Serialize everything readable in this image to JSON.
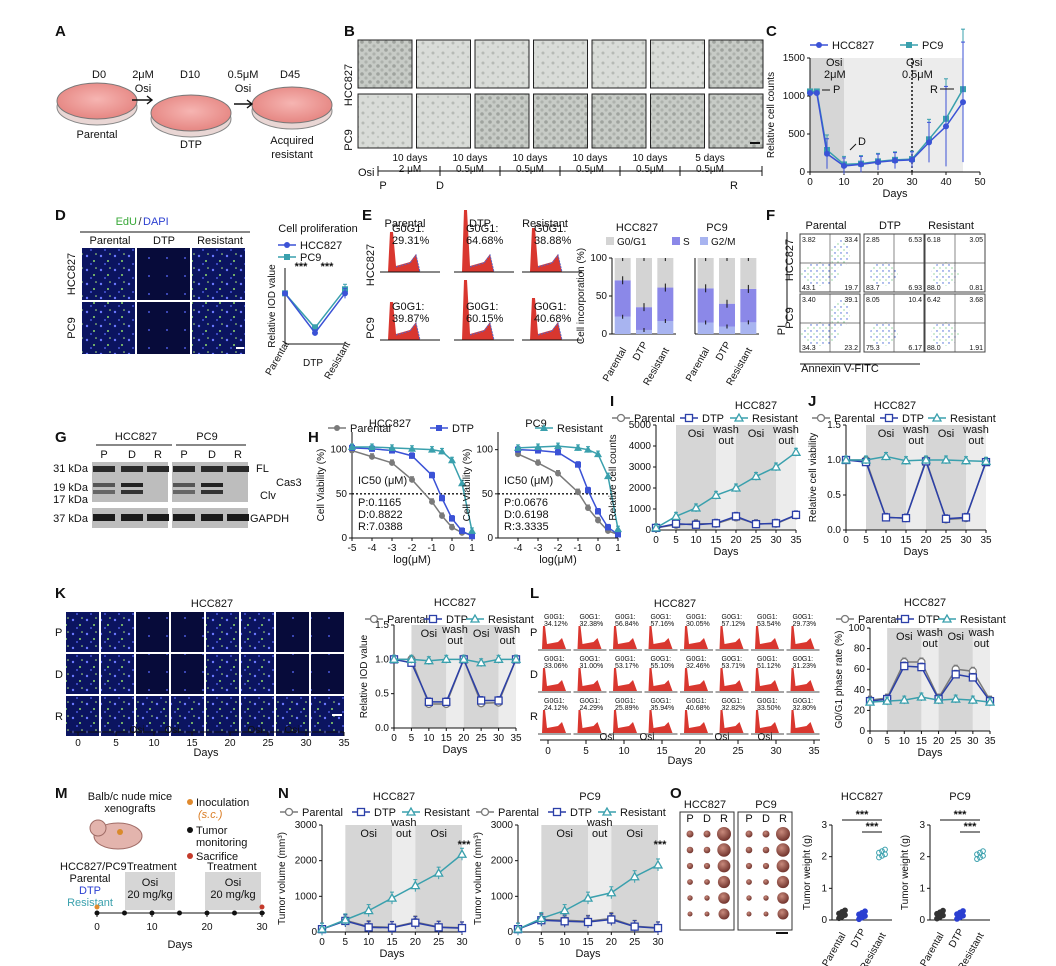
{
  "panel_labels": {
    "A": "A",
    "B": "B",
    "C": "C",
    "D": "D",
    "E": "E",
    "F": "F",
    "G": "G",
    "H": "H",
    "I": "I",
    "J": "J",
    "K": "K",
    "L": "L",
    "M": "M",
    "N": "N",
    "O": "O"
  },
  "colors": {
    "blue": "#3b52d6",
    "teal": "#3aa0ad",
    "gray": "#7a7a7a",
    "navy": "#2b3fa8",
    "red": "#d9372f",
    "purple": "#8b88e8",
    "shade": "#d6d6d6",
    "light": "#ececec"
  },
  "A": {
    "d0": "D0",
    "d10": "D10",
    "d45": "D45",
    "dose1": "2μM",
    "osi1": "Osi",
    "dose2": "0.5μM",
    "osi2": "Osi",
    "parental": "Parental",
    "dtp": "DTP",
    "acquired": "Acquired",
    "resistant": "resistant"
  },
  "B": {
    "row1": "HCC827",
    "row2": "PC9",
    "osi": "Osi",
    "durations": [
      "10 days",
      "10 days",
      "10 days",
      "10 days",
      "10 days",
      "5 days"
    ],
    "doses": [
      "2 μM",
      "0.5μM",
      "0.5μM",
      "0.5μM",
      "0.5μM",
      "0.5μM"
    ],
    "p": "P",
    "d": "D",
    "r": "R"
  },
  "C": {
    "legend1": "HCC827",
    "legend2": "PC9",
    "xlabel": "Days",
    "ylabel": "Relative cell counts",
    "osi_a": "Osi",
    "dose_a": "2μM",
    "osi_b": "Osi",
    "dose_b": "0.5μM",
    "label_p": "P",
    "label_d": "D",
    "label_r": "R",
    "xticks": [
      "0",
      "10",
      "20",
      "30",
      "40",
      "50"
    ],
    "yticks": [
      "0",
      "500",
      "1000",
      "1500"
    ]
  },
  "D": {
    "title_edu": "EdU",
    "slash": "/",
    "title_dapi": "DAPI",
    "cols": [
      "Parental",
      "DTP",
      "Resistant"
    ],
    "rows": [
      "HCC827",
      "PC9"
    ],
    "chart_title": "Cell proliferation",
    "legend1": "HCC827",
    "legend2": "PC9",
    "ylabel": "Relative IOD value",
    "xcats": [
      "Parental",
      "DTP",
      "Resistant"
    ],
    "sig1": "***",
    "sig2": "***"
  },
  "E": {
    "cols": [
      "Parental",
      "DTP",
      "Resistant"
    ],
    "rows": [
      "HCC827",
      "PC9"
    ],
    "g1": [
      "G0G1:",
      "29.31%",
      "G0G1:",
      "64.68%",
      "G0G1:",
      "38.88%"
    ],
    "g2": [
      "G0G1:",
      "39.87%",
      "G0G1:",
      "60.15%",
      "G0G1:",
      "40.68%"
    ],
    "bar_title1": "HCC827",
    "bar_title2": "PC9",
    "legend": [
      "G0/G1",
      "S",
      "G2/M"
    ],
    "ylabel": "Cell incorporation (%)",
    "yticks": [
      "0",
      "50",
      "100"
    ],
    "xcats": [
      "Parental",
      "DTP",
      "Resistant"
    ]
  },
  "F": {
    "cols": [
      "Parental",
      "DTP",
      "Resistant"
    ],
    "rows": [
      "HCC827",
      "PC9"
    ],
    "xlabel": "Annexin V-FITC",
    "ylabel": "PI",
    "q1": [
      [
        "3.82",
        "33.4",
        "43.1",
        "19.7"
      ],
      [
        "2.85",
        "6.53",
        "83.7",
        "6.93"
      ],
      [
        "6.18",
        "3.05",
        "88.0",
        "0.81"
      ]
    ],
    "q2": [
      [
        "3.40",
        "39.1",
        "34.3",
        "23.2"
      ],
      [
        "8.05",
        "10.4",
        "75.3",
        "6.17"
      ],
      [
        "6.42",
        "3.68",
        "88.0",
        "1.91"
      ]
    ]
  },
  "G": {
    "g1": "HCC827",
    "g2": "PC9",
    "lanes": [
      "P",
      "D",
      "R",
      "P",
      "D",
      "R"
    ],
    "kda": [
      "31 kDa",
      "19 kDa",
      "17 kDa",
      "37 kDa"
    ],
    "fl": "FL",
    "cas3": "Cas3",
    "clv": "Clv",
    "gapdh": "GAPDH"
  },
  "H": {
    "title1": "HCC827",
    "title2": "PC9",
    "legend": [
      "Parental",
      "DTP",
      "Resistant"
    ],
    "ylabel": "Cell Viability (%)",
    "xlabel": "log(μM)",
    "ic50": "IC50 (μM)",
    "ic1": [
      "P:0.1165",
      "D:0.8822",
      "R:7.0388"
    ],
    "ic2": [
      "P:0.0676",
      "D:0.6198",
      "R:3.3335"
    ],
    "xticks1": [
      "-5",
      "-4",
      "-3",
      "-2",
      "-1",
      "0",
      "1"
    ],
    "xticks2": [
      "-4",
      "-3",
      "-2",
      "-1",
      "0",
      "1"
    ],
    "yticks": [
      "0",
      "50",
      "100"
    ]
  },
  "I": {
    "title": "HCC827",
    "legend": [
      "Parental",
      "DTP",
      "Resistant"
    ],
    "ylabel": "Relative cell counts",
    "xlabel": "Days",
    "osi": "Osi",
    "wash": "wash",
    "out": "out",
    "yticks": [
      "0",
      "1000",
      "2000",
      "3000",
      "4000",
      "5000"
    ],
    "xticks": [
      "0",
      "5",
      "10",
      "15",
      "20",
      "25",
      "30",
      "35"
    ]
  },
  "J": {
    "title": "HCC827",
    "legend": [
      "Parental",
      "DTP",
      "Resistant"
    ],
    "ylabel": "Relative cell viability",
    "xlabel": "Days",
    "osi": "Osi",
    "wash": "wash",
    "out": "out",
    "yticks": [
      "0.0",
      "0.5",
      "1.0",
      "1.5"
    ],
    "xticks": [
      "0",
      "5",
      "10",
      "15",
      "20",
      "25",
      "30",
      "35"
    ]
  },
  "K": {
    "title": "HCC827",
    "rows": [
      "P",
      "D",
      "R"
    ],
    "xlabel": "Days",
    "osi": "Osi",
    "xticks": [
      "0",
      "5",
      "10",
      "15",
      "20",
      "25",
      "30",
      "35"
    ],
    "chart_title": "HCC827",
    "legend": [
      "Parental",
      "DTP",
      "Resistant"
    ],
    "ylabel": "Relative IOD value",
    "wash": "wash",
    "out": "out",
    "yticks": [
      "0.0",
      "0.5",
      "1.0",
      "1.5"
    ]
  },
  "L": {
    "title": "HCC827",
    "rows": [
      "P",
      "D",
      "R"
    ],
    "xlabel": "Days",
    "osi": "Osi",
    "xticks": [
      "0",
      "5",
      "10",
      "15",
      "20",
      "25",
      "30",
      "35"
    ],
    "g0": "G0G1:",
    "r1": [
      "34.12%",
      "32.38%",
      "56.84%",
      "57.16%",
      "30.05%",
      "57.12%",
      "53.54%",
      "29.73%"
    ],
    "r2": [
      "33.06%",
      "31.00%",
      "53.17%",
      "55.10%",
      "32.46%",
      "53.71%",
      "51.12%",
      "31.23%"
    ],
    "r3": [
      "24.12%",
      "24.29%",
      "25.89%",
      "35.94%",
      "40.68%",
      "32.82%",
      "33.50%",
      "32.80%"
    ],
    "chart_title": "HCC827",
    "legend": [
      "Parental",
      "DTP",
      "Resistant"
    ],
    "ylabel": "G0/G1 phase rate (%)",
    "wash": "wash",
    "out": "out",
    "yticks": [
      "0",
      "20",
      "40",
      "60",
      "80",
      "100"
    ]
  },
  "M": {
    "mice": "Balb/c nude mice",
    "xeno": "xenografts",
    "inoc": "Inoculation",
    "sc": "(s.c.)",
    "tumor": "Tumor",
    "monitor": "monitoring",
    "sacrifice": "Sacrifice",
    "cells": "HCC827/PC9",
    "treatment1": "Treatment",
    "treatment2": "Treatment",
    "parental": "Parental",
    "dtp": "DTP",
    "resistant": "Resistant",
    "osi": "Osi",
    "dose": "20 mg/kg",
    "xlabel": "Days",
    "xticks": [
      "0",
      "10",
      "20",
      "30"
    ]
  },
  "N": {
    "title1": "HCC827",
    "title2": "PC9",
    "legend": [
      "Parental",
      "DTP",
      "Resistant"
    ],
    "ylabel": "Tumor volume (mm³)",
    "xlabel": "Days",
    "osi": "Osi",
    "wash": "wash",
    "out": "out",
    "sig": "***",
    "yticks": [
      "0",
      "1000",
      "2000",
      "3000"
    ],
    "xticks": [
      "0",
      "5",
      "10",
      "15",
      "20",
      "25",
      "30"
    ]
  },
  "O": {
    "g1": "HCC827",
    "g2": "PC9",
    "lanes": [
      "P",
      "D",
      "R",
      "P",
      "D",
      "R"
    ],
    "t1": "HCC827",
    "t2": "PC9",
    "ylabel": "Tumor weight (g)",
    "xcats": [
      "Parental",
      "DTP",
      "Resistant"
    ],
    "sig": "***",
    "yticks": [
      "0",
      "1",
      "2",
      "3"
    ]
  },
  "chart_data": [
    {
      "type": "line",
      "panel": "C",
      "x": [
        0,
        2,
        5,
        10,
        15,
        20,
        25,
        30,
        35,
        40,
        45
      ],
      "series": [
        {
          "name": "HCC827",
          "values": [
            1040,
            1040,
            240,
            80,
            100,
            130,
            150,
            160,
            390,
            600,
            920
          ]
        },
        {
          "name": "PC9",
          "values": [
            1060,
            1060,
            290,
            100,
            110,
            140,
            160,
            170,
            430,
            700,
            1090
          ]
        }
      ],
      "xlabel": "Days",
      "ylabel": "Relative cell counts",
      "xlim": [
        0,
        50
      ],
      "ylim": [
        0,
        1500
      ]
    },
    {
      "type": "line",
      "panel": "D",
      "categories": [
        "Parental",
        "DTP",
        "Resistant"
      ],
      "series": [
        {
          "name": "HCC827",
          "values": [
            1.0,
            0.22,
            1.0
          ]
        },
        {
          "name": "PC9",
          "values": [
            1.0,
            0.32,
            1.08
          ]
        }
      ],
      "ylabel": "Relative IOD value"
    },
    {
      "type": "bar",
      "panel": "E",
      "categories": [
        "Parental",
        "DTP",
        "Resistant"
      ],
      "series": [
        {
          "name": "G0/G1",
          "hcc827": [
            29.31,
            64.68,
            38.88
          ],
          "pc9": [
            39.87,
            60.15,
            40.68
          ]
        },
        {
          "name": "S",
          "hcc827": [
            48,
            30,
            44
          ],
          "pc9": [
            45,
            30,
            44
          ]
        },
        {
          "name": "G2/M",
          "hcc827": [
            22.69,
            5.32,
            17.12
          ],
          "pc9": [
            15.13,
            9.85,
            15.32
          ]
        }
      ],
      "ylabel": "Cell incorporation (%)",
      "ylim": [
        0,
        100
      ]
    },
    {
      "type": "line",
      "panel": "H-HCC827",
      "x": [
        -5,
        -4,
        -3,
        -2,
        -1,
        -0.5,
        0,
        0.5,
        1
      ],
      "series": [
        {
          "name": "Parental",
          "values": [
            99,
            92,
            85,
            66,
            41,
            25,
            12,
            6,
            4
          ]
        },
        {
          "name": "DTP",
          "values": [
            102,
            101,
            99,
            93,
            71,
            45,
            22,
            8,
            2
          ]
        },
        {
          "name": "Resistant",
          "values": [
            103,
            103,
            102,
            101,
            100,
            98,
            88,
            62,
            8
          ]
        }
      ],
      "xlabel": "log(μM)",
      "ylabel": "Cell Viability (%)"
    },
    {
      "type": "line",
      "panel": "H-PC9",
      "x": [
        -4,
        -3,
        -2,
        -1,
        -0.5,
        0,
        0.5,
        1
      ],
      "series": [
        {
          "name": "Parental",
          "values": [
            95,
            85,
            73,
            52,
            34,
            20,
            8,
            4
          ]
        },
        {
          "name": "DTP",
          "values": [
            100,
            99,
            97,
            83,
            54,
            30,
            12,
            4
          ]
        },
        {
          "name": "Resistant",
          "values": [
            102,
            103,
            104,
            102,
            100,
            95,
            70,
            10
          ]
        }
      ],
      "xlabel": "log(μM)",
      "ylabel": "Cell Viability (%)"
    },
    {
      "type": "line",
      "panel": "I",
      "x": [
        0,
        5,
        10,
        15,
        20,
        25,
        30,
        35
      ],
      "series": [
        {
          "name": "Parental",
          "values": [
            100,
            250,
            300,
            300,
            600,
            300,
            300,
            700
          ]
        },
        {
          "name": "DTP",
          "values": [
            100,
            300,
            250,
            320,
            650,
            280,
            320,
            720
          ]
        },
        {
          "name": "Resistant",
          "values": [
            100,
            650,
            1050,
            1650,
            2000,
            2550,
            3000,
            3700
          ]
        }
      ],
      "xlabel": "Days",
      "ylabel": "Relative cell counts",
      "ylim": [
        0,
        5000
      ]
    },
    {
      "type": "line",
      "panel": "J",
      "x": [
        0,
        5,
        10,
        15,
        20,
        25,
        30,
        35
      ],
      "series": [
        {
          "name": "Parental",
          "values": [
            1.0,
            1.0,
            0.18,
            0.17,
            1.0,
            0.15,
            0.17,
            0.98
          ]
        },
        {
          "name": "DTP",
          "values": [
            1.0,
            0.97,
            0.18,
            0.17,
            0.98,
            0.16,
            0.18,
            0.97
          ]
        },
        {
          "name": "Resistant",
          "values": [
            1.0,
            1.0,
            1.05,
            0.99,
            1.0,
            1.0,
            0.99,
            0.98
          ]
        }
      ],
      "xlabel": "Days",
      "ylabel": "Relative cell viability",
      "ylim": [
        0,
        1.5
      ]
    },
    {
      "type": "line",
      "panel": "K",
      "x": [
        0,
        5,
        10,
        15,
        20,
        25,
        30,
        35
      ],
      "series": [
        {
          "name": "Parental",
          "values": [
            1.0,
            1.0,
            0.35,
            0.35,
            1.0,
            0.36,
            0.37,
            1.0
          ]
        },
        {
          "name": "DTP",
          "values": [
            1.0,
            0.95,
            0.38,
            0.38,
            1.0,
            0.4,
            0.4,
            1.0
          ]
        },
        {
          "name": "Resistant",
          "values": [
            1.0,
            1.0,
            0.98,
            1.0,
            1.0,
            0.95,
            1.0,
            1.0
          ]
        }
      ],
      "xlabel": "Days",
      "ylabel": "Relative IOD value",
      "ylim": [
        0,
        1.5
      ]
    },
    {
      "type": "line",
      "panel": "L",
      "x": [
        0,
        5,
        10,
        15,
        20,
        25,
        30,
        35
      ],
      "series": [
        {
          "name": "Parental",
          "values": [
            30,
            32,
            67,
            67,
            32,
            60,
            58,
            30
          ]
        },
        {
          "name": "DTP",
          "values": [
            29,
            31,
            63,
            62,
            31,
            55,
            52,
            29
          ]
        },
        {
          "name": "Resistant",
          "values": [
            28,
            29,
            30,
            33,
            30,
            31,
            30,
            28
          ]
        }
      ],
      "xlabel": "Days",
      "ylabel": "G0/G1 phase rate (%)",
      "ylim": [
        0,
        100
      ]
    },
    {
      "type": "line",
      "panel": "N-HCC827",
      "x": [
        0,
        5,
        10,
        15,
        20,
        25,
        30
      ],
      "series": [
        {
          "name": "Parental",
          "values": [
            80,
            330,
            150,
            130,
            280,
            140,
            120
          ]
        },
        {
          "name": "DTP",
          "values": [
            80,
            310,
            130,
            120,
            260,
            130,
            110
          ]
        },
        {
          "name": "Resistant",
          "values": [
            80,
            340,
            600,
            950,
            1300,
            1650,
            2180
          ]
        }
      ],
      "xlabel": "Days",
      "ylabel": "Tumor volume (mm³)",
      "ylim": [
        0,
        3000
      ]
    },
    {
      "type": "line",
      "panel": "N-PC9",
      "x": [
        0,
        5,
        10,
        15,
        20,
        25,
        30
      ],
      "series": [
        {
          "name": "Parental",
          "values": [
            80,
            350,
            330,
            300,
            380,
            160,
            120
          ]
        },
        {
          "name": "DTP",
          "values": [
            80,
            330,
            300,
            280,
            350,
            150,
            110
          ]
        },
        {
          "name": "Resistant",
          "values": [
            80,
            380,
            600,
            950,
            1100,
            1550,
            1880
          ]
        }
      ],
      "xlabel": "Days",
      "ylabel": "Tumor volume (mm³)",
      "ylim": [
        0,
        3000
      ]
    },
    {
      "type": "scatter",
      "panel": "O-HCC827",
      "categories": [
        "Parental",
        "DTP",
        "Resistant"
      ],
      "values": [
        0.18,
        0.15,
        2.1
      ],
      "ylabel": "Tumor weight (g)",
      "ylim": [
        0,
        3
      ]
    },
    {
      "type": "scatter",
      "panel": "O-PC9",
      "categories": [
        "Parental",
        "DTP",
        "Resistant"
      ],
      "values": [
        0.17,
        0.16,
        2.05
      ],
      "ylabel": "Tumor weight (g)",
      "ylim": [
        0,
        3
      ]
    }
  ]
}
